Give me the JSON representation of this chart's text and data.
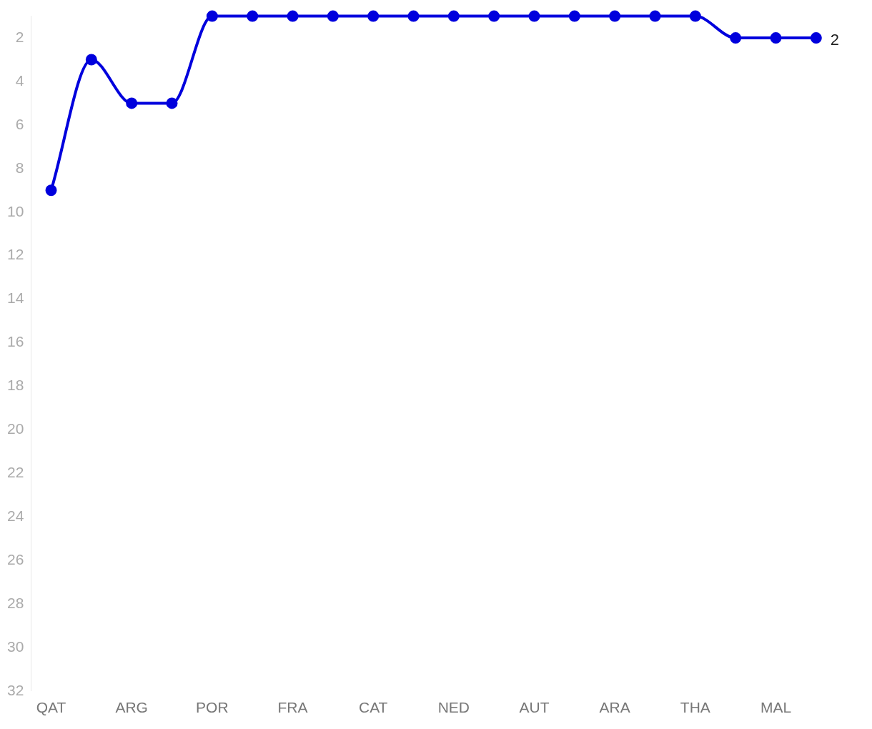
{
  "chart_data": {
    "type": "line",
    "categories": [
      "QAT",
      null,
      "ARG",
      null,
      "POR",
      null,
      "FRA",
      null,
      "CAT",
      null,
      "NED",
      null,
      "AUT",
      null,
      "ARA",
      null,
      "THA",
      null,
      "MAL",
      null
    ],
    "series": [
      {
        "color": "#0000dd",
        "values": [
          9,
          3,
          5,
          5,
          1,
          1,
          1,
          1,
          1,
          1,
          1,
          1,
          1,
          1,
          1,
          1,
          1,
          2,
          2,
          2
        ],
        "value_labels": [
          null,
          null,
          null,
          null,
          null,
          null,
          null,
          null,
          null,
          null,
          null,
          null,
          null,
          null,
          null,
          null,
          null,
          null,
          null,
          "2"
        ]
      }
    ],
    "ylim": [
      32,
      1
    ],
    "yticks": [
      2,
      4,
      6,
      8,
      10,
      12,
      14,
      16,
      18,
      20,
      22,
      24,
      26,
      28,
      30,
      32
    ],
    "grid": false,
    "legend": false,
    "marker": "circle",
    "line_style": "solid"
  }
}
